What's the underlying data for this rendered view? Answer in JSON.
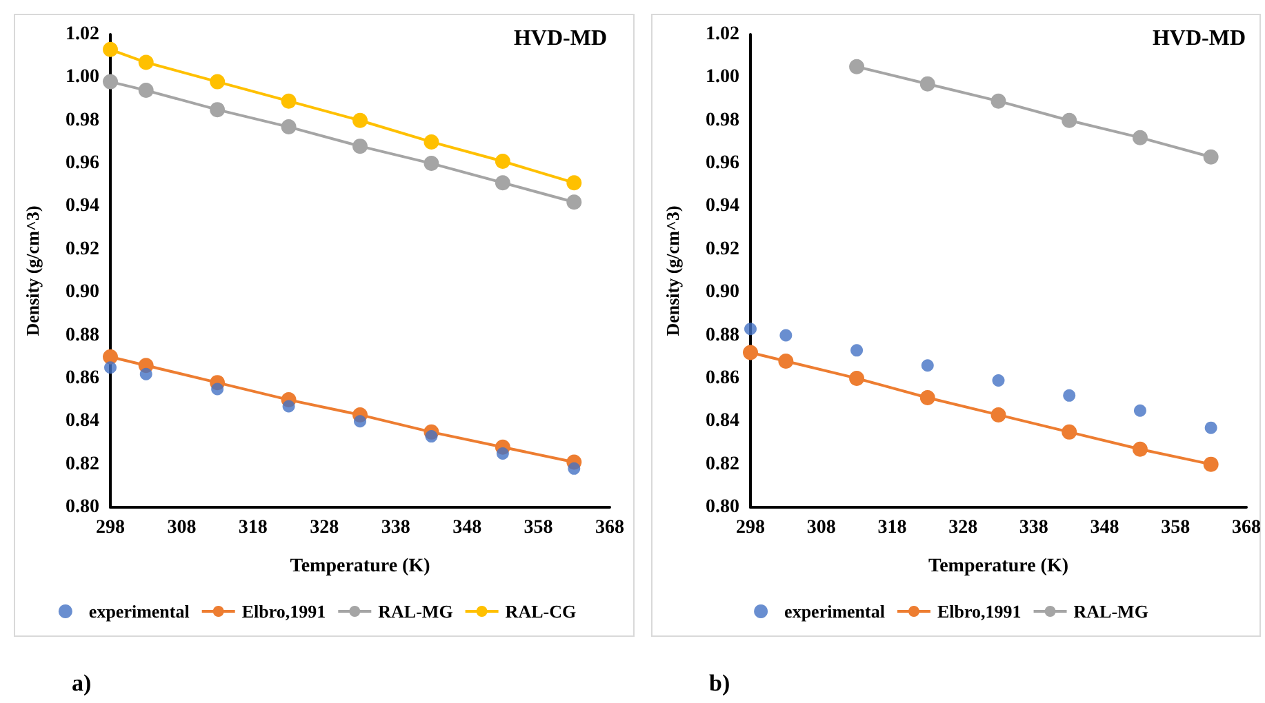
{
  "chart_data": [
    {
      "type": "line",
      "xlabel": "Temperature (K)",
      "ylabel": "Density (g/cm^3)",
      "annotations": [
        "HVD-MD",
        "a)"
      ],
      "marker": "circle",
      "legend": "bottom",
      "x": [
        298,
        303,
        313,
        323,
        333,
        343,
        353,
        363
      ],
      "xlim": [
        298,
        368
      ],
      "xticks": [
        298,
        308,
        318,
        328,
        338,
        348,
        358,
        368
      ],
      "ylim": [
        0.8,
        1.02
      ],
      "yticks": [
        {
          "value": 0.8,
          "label": "0.80"
        },
        {
          "value": 0.82,
          "label": "0.82"
        },
        {
          "value": 0.84,
          "label": "0.84"
        },
        {
          "value": 0.86,
          "label": "0.86"
        },
        {
          "value": 0.88,
          "label": "0.88"
        },
        {
          "value": 0.9,
          "label": "0.90"
        },
        {
          "value": 0.92,
          "label": "0.92"
        },
        {
          "value": 0.94,
          "label": "0.94"
        },
        {
          "value": 0.96,
          "label": "0.96"
        },
        {
          "value": 0.98,
          "label": "0.98"
        },
        {
          "value": 1.0,
          "label": "1.00"
        },
        {
          "value": 1.02,
          "label": "1.02"
        }
      ],
      "series": [
        {
          "name": "experimental",
          "type": "scatter",
          "color": "#4472c4",
          "values": [
            0.865,
            0.862,
            0.855,
            0.847,
            0.84,
            0.833,
            0.825,
            0.818
          ]
        },
        {
          "name": "Elbro,1991",
          "color": "#ed7d31",
          "values": [
            0.87,
            0.866,
            0.858,
            0.85,
            0.843,
            0.835,
            0.828,
            0.821
          ]
        },
        {
          "name": "RAL-MG",
          "color": "#a5a5a5",
          "values": [
            0.998,
            0.994,
            0.985,
            0.977,
            0.968,
            0.96,
            0.951,
            0.942
          ]
        },
        {
          "name": "RAL-CG",
          "color": "#ffc000",
          "values": [
            1.013,
            1.007,
            0.998,
            0.989,
            0.98,
            0.97,
            0.961,
            0.951
          ]
        }
      ]
    },
    {
      "type": "line",
      "xlabel": "Temperature (K)",
      "ylabel": "Density (g/cm^3)",
      "annotations": [
        "HVD-MD",
        "b)"
      ],
      "marker": "circle",
      "legend": "bottom",
      "x": [
        298,
        303,
        313,
        323,
        333,
        343,
        353,
        363
      ],
      "xlim": [
        298,
        368
      ],
      "xticks": [
        298,
        308,
        318,
        328,
        338,
        348,
        358,
        368
      ],
      "ylim": [
        0.8,
        1.02
      ],
      "yticks": [
        {
          "value": 0.8,
          "label": "0.80"
        },
        {
          "value": 0.82,
          "label": "0.82"
        },
        {
          "value": 0.84,
          "label": "0.84"
        },
        {
          "value": 0.86,
          "label": "0.86"
        },
        {
          "value": 0.88,
          "label": "0.88"
        },
        {
          "value": 0.9,
          "label": "0.90"
        },
        {
          "value": 0.92,
          "label": "0.92"
        },
        {
          "value": 0.94,
          "label": "0.94"
        },
        {
          "value": 0.96,
          "label": "0.96"
        },
        {
          "value": 0.98,
          "label": "0.98"
        },
        {
          "value": 1.0,
          "label": "1.00"
        },
        {
          "value": 1.02,
          "label": "1.02"
        }
      ],
      "series": [
        {
          "name": "experimental",
          "type": "scatter",
          "color": "#4472c4",
          "values": [
            0.883,
            0.88,
            0.873,
            0.866,
            0.859,
            0.852,
            0.845,
            0.837
          ]
        },
        {
          "name": "Elbro,1991",
          "color": "#ed7d31",
          "values": [
            0.872,
            0.868,
            0.86,
            0.851,
            0.843,
            0.835,
            0.827,
            0.82
          ]
        },
        {
          "name": "RAL-MG",
          "color": "#a5a5a5",
          "x": [
            313,
            323,
            333,
            343,
            353,
            363
          ],
          "values": [
            1.005,
            0.997,
            0.989,
            0.98,
            0.972,
            0.963
          ]
        }
      ]
    }
  ]
}
